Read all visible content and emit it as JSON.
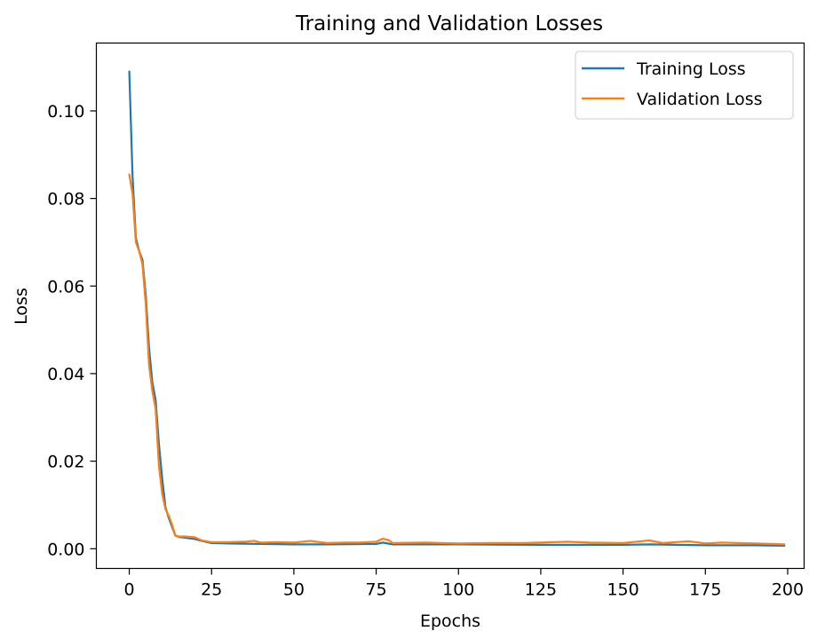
{
  "chart_data": {
    "type": "line",
    "title": "Training and Validation Losses",
    "xlabel": "Epochs",
    "ylabel": "Loss",
    "xlim": [
      -10,
      205
    ],
    "ylim": [
      -0.0045,
      0.1155
    ],
    "xticks": [
      0,
      25,
      50,
      75,
      100,
      125,
      150,
      175,
      200
    ],
    "yticks": [
      0.0,
      0.02,
      0.04,
      0.06,
      0.08,
      0.1
    ],
    "ytick_labels": [
      "0.00",
      "0.02",
      "0.04",
      "0.06",
      "0.08",
      "0.10"
    ],
    "grid": false,
    "legend_position": "top-right",
    "series": [
      {
        "name": "Training Loss",
        "color": "#1f77b4",
        "points": [
          [
            0,
            0.109
          ],
          [
            1,
            0.085
          ],
          [
            2,
            0.071
          ],
          [
            3,
            0.068
          ],
          [
            4,
            0.066
          ],
          [
            5,
            0.058
          ],
          [
            6,
            0.046
          ],
          [
            7,
            0.038
          ],
          [
            8,
            0.034
          ],
          [
            9,
            0.024
          ],
          [
            10,
            0.016
          ],
          [
            11,
            0.0095
          ],
          [
            12,
            0.007
          ],
          [
            13,
            0.005
          ],
          [
            14,
            0.003
          ],
          [
            15,
            0.0027
          ],
          [
            17,
            0.0025
          ],
          [
            20,
            0.0022
          ],
          [
            22,
            0.0018
          ],
          [
            25,
            0.0013
          ],
          [
            30,
            0.0012
          ],
          [
            40,
            0.0011
          ],
          [
            50,
            0.001
          ],
          [
            60,
            0.001
          ],
          [
            75,
            0.0011
          ],
          [
            77,
            0.0014
          ],
          [
            80,
            0.001
          ],
          [
            100,
            0.001
          ],
          [
            125,
            0.0009
          ],
          [
            150,
            0.0009
          ],
          [
            158,
            0.001
          ],
          [
            175,
            0.0008
          ],
          [
            190,
            0.0008
          ],
          [
            199,
            0.0007
          ]
        ]
      },
      {
        "name": "Validation Loss",
        "color": "#ff7f0e",
        "points": [
          [
            0,
            0.0855
          ],
          [
            1,
            0.081
          ],
          [
            2,
            0.07
          ],
          [
            3,
            0.068
          ],
          [
            4,
            0.065
          ],
          [
            5,
            0.056
          ],
          [
            6,
            0.042
          ],
          [
            7,
            0.036
          ],
          [
            8,
            0.032
          ],
          [
            9,
            0.019
          ],
          [
            10,
            0.0125
          ],
          [
            11,
            0.009
          ],
          [
            12,
            0.0075
          ],
          [
            13,
            0.0055
          ],
          [
            14,
            0.003
          ],
          [
            15,
            0.0028
          ],
          [
            17,
            0.0028
          ],
          [
            20,
            0.0026
          ],
          [
            22,
            0.0019
          ],
          [
            25,
            0.0015
          ],
          [
            30,
            0.0015
          ],
          [
            35,
            0.0016
          ],
          [
            38,
            0.0018
          ],
          [
            40,
            0.0014
          ],
          [
            45,
            0.0015
          ],
          [
            50,
            0.0014
          ],
          [
            55,
            0.0018
          ],
          [
            60,
            0.0013
          ],
          [
            65,
            0.0014
          ],
          [
            70,
            0.0014
          ],
          [
            75,
            0.0016
          ],
          [
            77,
            0.0023
          ],
          [
            79,
            0.0019
          ],
          [
            80,
            0.0013
          ],
          [
            90,
            0.0014
          ],
          [
            100,
            0.0012
          ],
          [
            110,
            0.0013
          ],
          [
            120,
            0.0013
          ],
          [
            133,
            0.0016
          ],
          [
            140,
            0.0014
          ],
          [
            150,
            0.0013
          ],
          [
            158,
            0.0019
          ],
          [
            162,
            0.0013
          ],
          [
            170,
            0.0017
          ],
          [
            175,
            0.0012
          ],
          [
            180,
            0.0014
          ],
          [
            190,
            0.0012
          ],
          [
            199,
            0.001
          ]
        ]
      }
    ]
  }
}
